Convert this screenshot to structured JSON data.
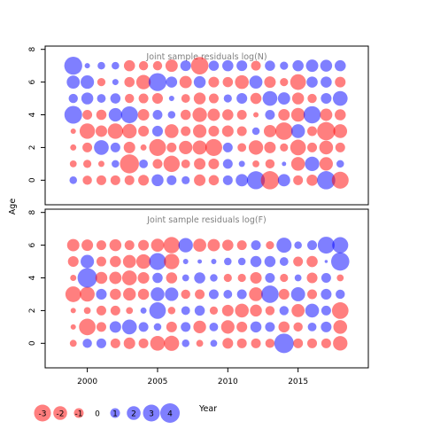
{
  "chart_data": {
    "type": "scatter",
    "description_of_encoding": "",
    "xlabel": "Year",
    "ylabel": "Age",
    "xlim": [
      1997,
      2020
    ],
    "ylim": [
      -1.5,
      8.2
    ],
    "xticks": [
      2000,
      2005,
      2010,
      2015
    ],
    "yticks": [
      0,
      2,
      4,
      6,
      8
    ],
    "years": [
      1999,
      2000,
      2001,
      2002,
      2003,
      2004,
      2005,
      2006,
      2007,
      2008,
      2009,
      2010,
      2011,
      2012,
      2013,
      2014,
      2015,
      2016,
      2017,
      2018
    ],
    "colors": {
      "positive": "#0000ff",
      "negative": "#ff0000",
      "fill_opacity": 0.5
    },
    "panels": [
      {
        "title": "Joint sample residuals log(N)",
        "ages": [
          0,
          1,
          2,
          3,
          4,
          5,
          6,
          7
        ],
        "residuals": [
          [
            0.6,
            -0.9,
            -1.0,
            -1.0,
            -1.0,
            -1.2,
            1.5,
            1.0,
            0.7,
            -1.4,
            -1.1,
            1.0,
            1.6,
            3.4,
            -3.5,
            1.6,
            -1.0,
            -1.3,
            3.5,
            -3.0
          ],
          [
            -0.5,
            -0.7,
            -0.4,
            0.6,
            -3.8,
            0.8,
            -1.0,
            -2.8,
            -0.8,
            -1.4,
            -1.2,
            1.0,
            0.4,
            -0.5,
            -0.9,
            0.2,
            -2.0,
            2.2,
            -1.9,
            0.6
          ],
          [
            -0.4,
            -1.0,
            2.3,
            1.0,
            -1.4,
            -0.4,
            -3.0,
            -1.0,
            -1.9,
            -2.1,
            -3.0,
            1.0,
            -0.8,
            -2.2,
            -1.4,
            -0.7,
            -2.6,
            -1.0,
            -2.0,
            -1.0
          ],
          [
            -0.3,
            -2.5,
            -1.4,
            -2.5,
            -2.2,
            -1.2,
            1.2,
            -2.0,
            -1.0,
            -1.9,
            -1.2,
            -1.4,
            -1.0,
            0.6,
            -1.6,
            -3.2,
            2.0,
            -1.0,
            -3.5,
            -2.0
          ],
          [
            3.3,
            -1.0,
            -1.1,
            1.9,
            3.0,
            -1.4,
            1.0,
            0.6,
            -1.1,
            -2.2,
            -1.6,
            -1.3,
            -1.0,
            -0.3,
            1.0,
            -1.4,
            -2.0,
            3.1,
            -1.6,
            -1.3
          ],
          [
            0.9,
            1.5,
            0.8,
            1.1,
            -0.9,
            -1.0,
            -1.2,
            0.3,
            -0.8,
            -1.5,
            -1.0,
            0.7,
            1.2,
            -1.3,
            2.3,
            1.6,
            -1.5,
            -0.9,
            1.2,
            2.3
          ],
          [
            1.8,
            1.9,
            -0.7,
            0.4,
            -1.1,
            -2.2,
            3.4,
            1.3,
            -1.6,
            1.5,
            -1.2,
            -1.1,
            -2.0,
            1.8,
            -1.4,
            -0.7,
            -2.6,
            1.3,
            1.3,
            -1.2
          ],
          [
            3.4,
            0.3,
            0.6,
            0.6,
            -1.3,
            -0.9,
            -0.9,
            -1.6,
            1.2,
            -3.2,
            1.1,
            1.3,
            1.2,
            -1.0,
            1.1,
            0.7,
            1.3,
            1.6,
            1.5,
            1.3
          ]
        ]
      },
      {
        "title": "Joint sample residuals log(F)",
        "ages": [
          0,
          1,
          2,
          3,
          4,
          5,
          6
        ],
        "residuals": [
          [
            -0.5,
            0.9,
            1.0,
            -1.0,
            -1.4,
            -1.0,
            -2.3,
            -2.4,
            0.6,
            -0.5,
            0.5,
            -1.2,
            -1.0,
            -1.0,
            -0.9,
            4.0,
            -1.0,
            -1.0,
            -1.0,
            -2.2
          ],
          [
            -0.3,
            -2.9,
            -1.0,
            1.4,
            2.3,
            1.0,
            0.6,
            -1.2,
            1.0,
            -1.7,
            0.8,
            -1.9,
            -1.2,
            1.3,
            1.0,
            -1.3,
            -0.9,
            0.8,
            1.2,
            -2.0
          ],
          [
            -0.3,
            -0.5,
            -1.0,
            -1.0,
            -0.5,
            0.4,
            2.9,
            -0.6,
            0.8,
            1.1,
            -0.7,
            -1.4,
            -2.0,
            -1.5,
            -0.9,
            0.9,
            -1.8,
            2.0,
            1.0,
            -2.9
          ],
          [
            -2.6,
            -2.3,
            1.2,
            -1.3,
            -1.7,
            -1.3,
            2.0,
            1.9,
            -0.9,
            -1.0,
            1.0,
            0.8,
            1.0,
            -2.0,
            3.2,
            -1.2,
            2.1,
            -1.0,
            1.2,
            0.9
          ],
          [
            -0.4,
            4.0,
            -1.5,
            -1.6,
            -2.3,
            -1.4,
            1.1,
            -1.3,
            0.5,
            1.3,
            0.6,
            -0.7,
            -0.7,
            -1.4,
            1.0,
            -0.7,
            0.5,
            -1.2,
            1.0,
            -0.5
          ],
          [
            -1.2,
            1.9,
            -1.0,
            -1.3,
            -1.8,
            -2.2,
            3.0,
            -2.5,
            0.3,
            0.2,
            0.3,
            0.6,
            0.6,
            1.3,
            1.3,
            0.8,
            -1.0,
            -1.3,
            0.1,
            3.5
          ],
          [
            -1.6,
            -1.4,
            -1.0,
            -1.5,
            -1.0,
            -1.2,
            -1.8,
            -2.8,
            2.2,
            -1.8,
            -1.6,
            -1.3,
            -1.0,
            1.0,
            -0.7,
            2.4,
            0.6,
            1.0,
            3.0,
            2.7
          ]
        ]
      }
    ],
    "legend": {
      "placement": "bottom-left",
      "entries": [
        {
          "label": "-3",
          "value": -3
        },
        {
          "label": "-2",
          "value": -2
        },
        {
          "label": "-1",
          "value": -1
        },
        {
          "label": "0",
          "value": 0
        },
        {
          "label": "1",
          "value": 1
        },
        {
          "label": "2",
          "value": 2
        },
        {
          "label": "3",
          "value": 3
        },
        {
          "label": "4",
          "value": 4
        }
      ]
    },
    "grid": false
  }
}
